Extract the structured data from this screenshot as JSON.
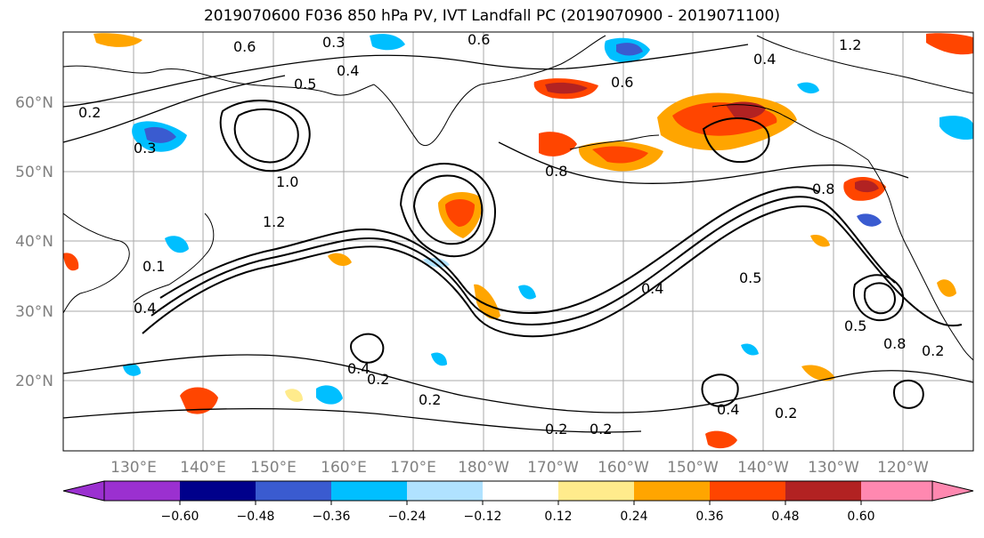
{
  "title": "2019070600 F036 850 hPa PV, IVT Landfall PC (2019070900 - 2019071100)",
  "latitude_labels": [
    "60°N",
    "50°N",
    "40°N",
    "30°N",
    "20°N"
  ],
  "longitude_labels": [
    "130°E",
    "140°E",
    "150°E",
    "160°E",
    "170°E",
    "180°W",
    "170°W",
    "160°W",
    "150°W",
    "140°W",
    "130°W",
    "120°W"
  ],
  "contour_labels": [
    "0.2",
    "0.3",
    "0.4",
    "0.5",
    "0.6",
    "0.8",
    "1.0",
    "1.2",
    "0.1",
    "0.2",
    "0.4",
    "0.5",
    "0.2",
    "0.2",
    "0.4",
    "0.2",
    "0.8",
    "0.5",
    "0.4",
    "0.8",
    "1.2",
    "0.3",
    "0.4",
    "0.6",
    "0.6",
    "0.2",
    "0.4",
    "0.2"
  ],
  "colorbar": {
    "tick_labels": [
      "−0.60",
      "−0.48",
      "−0.36",
      "−0.24",
      "−0.12",
      "0.12",
      "0.24",
      "0.36",
      "0.48",
      "0.60"
    ],
    "colors": [
      "#9b30d0",
      "#00008b",
      "#3a5bd0",
      "#00bfff",
      "#b0e2ff",
      "#ffffff",
      "#ffeb8c",
      "#ffa500",
      "#ff4500",
      "#b22222",
      "#ff88b0"
    ]
  },
  "colors": {
    "positive_light": "#ffeb8c",
    "positive_mid": "#ffa500",
    "positive_strong": "#ff4500",
    "positive_max": "#b22222",
    "negative_light": "#b0e2ff",
    "negative_mid": "#00bfff",
    "negative_strong": "#3a5bd0",
    "negative_max": "#00008b"
  }
}
